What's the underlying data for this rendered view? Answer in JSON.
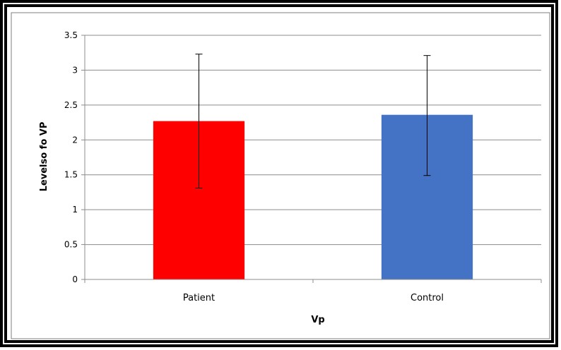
{
  "chart_data": {
    "type": "bar",
    "categories": [
      "Patient",
      "Control"
    ],
    "values": [
      2.27,
      2.36
    ],
    "error_bars": [
      {
        "low": 1.31,
        "high": 3.23
      },
      {
        "low": 1.49,
        "high": 3.21
      }
    ],
    "colors": [
      "#ff0000",
      "#4472c4"
    ],
    "xlabel": "Vp",
    "ylabel": "Levelso fo VP",
    "ylim": [
      0,
      3.5
    ],
    "yticks": [
      "0",
      "0.5",
      "1",
      "1.5",
      "2",
      "2.5",
      "3",
      "3.5"
    ],
    "grid": true,
    "legend": "none"
  }
}
